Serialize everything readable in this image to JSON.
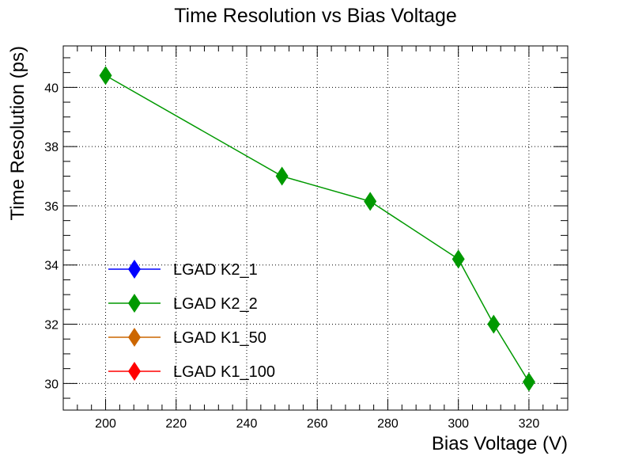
{
  "chart_data": {
    "type": "line",
    "title": "Time Resolution vs Bias Voltage",
    "xlabel": "Bias Voltage (V)",
    "ylabel": "Time Resolution (ps)",
    "xlim": [
      188,
      331
    ],
    "ylim": [
      29.1,
      41.4
    ],
    "xticks": [
      200,
      220,
      240,
      260,
      280,
      300,
      320
    ],
    "yticks": [
      30,
      32,
      34,
      36,
      38,
      40
    ],
    "grid": true,
    "legend_position": "bottom-left",
    "series": [
      {
        "name": "LGAD K2_1",
        "color": "#0000ff",
        "x": [],
        "y": []
      },
      {
        "name": "LGAD K2_2",
        "color": "#009900",
        "x": [
          200,
          250,
          275,
          300,
          310,
          320
        ],
        "y": [
          40.4,
          37.0,
          36.15,
          34.2,
          32.0,
          30.05
        ]
      },
      {
        "name": "LGAD K1_50",
        "color": "#cc6600",
        "x": [],
        "y": []
      },
      {
        "name": "LGAD K1_100",
        "color": "#ff0000",
        "x": [],
        "y": []
      }
    ]
  }
}
